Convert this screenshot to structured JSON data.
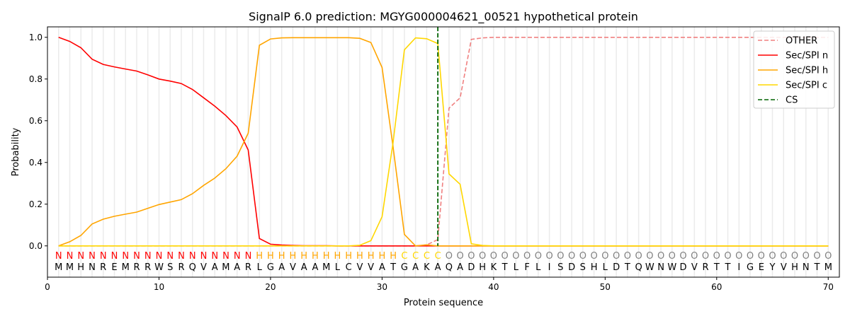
{
  "chart_data": {
    "type": "line",
    "title": "SignalP 6.0 prediction: MGYG000004621_00521 hypothetical protein",
    "xlabel": "Protein sequence",
    "ylabel": "Probability",
    "xlim": [
      0,
      71
    ],
    "ylim": [
      -0.15,
      1.05
    ],
    "xticks": [
      0,
      10,
      20,
      30,
      40,
      50,
      60,
      70
    ],
    "yticks": [
      "0.0",
      "0.2",
      "0.4",
      "0.6",
      "0.8",
      "1.0"
    ],
    "legend_position": "top-right",
    "sequence": "MMHNREMRRWSRQVAMARLGAVAAMLCVVATGAKAQADHKTLFLISDSHLDTQWNWDVRTTIGEYVHNTM",
    "labels": "NNNNNNNNNNNNNNNNNNHHHHHHHHHHHHHCCCCOOOOOOOOOOOOOOOOOOOOOOOOOOOOOOOOOOO",
    "label_colors": {
      "N": "#ff0000",
      "H": "#ffa500",
      "C": "#ffd700",
      "O": "#808080"
    },
    "cs_position": 35,
    "series": [
      {
        "name": "OTHER",
        "color": "#f08080",
        "dash": true,
        "values": [
          0,
          0,
          0,
          0,
          0,
          0,
          0,
          0,
          0,
          0,
          0,
          0,
          0,
          0,
          0,
          0,
          0,
          0,
          0,
          0,
          0,
          0,
          0,
          0,
          0,
          0,
          0,
          0,
          0,
          0,
          0,
          0,
          0,
          0.005,
          0.03,
          0.66,
          0.71,
          0.99,
          0.997,
          1,
          1,
          1,
          1,
          1,
          1,
          1,
          1,
          1,
          1,
          1,
          1,
          1,
          1,
          1,
          1,
          1,
          1,
          1,
          1,
          1,
          1,
          1,
          1,
          1,
          1,
          1,
          1,
          1,
          1,
          1
        ]
      },
      {
        "name": "Sec/SPI n",
        "color": "#ff0000",
        "values": [
          1.0,
          0.98,
          0.95,
          0.895,
          0.87,
          0.858,
          0.848,
          0.838,
          0.82,
          0.8,
          0.79,
          0.778,
          0.75,
          0.71,
          0.67,
          0.625,
          0.57,
          0.46,
          0.035,
          0.008,
          0.004,
          0.002,
          0.001,
          0.001,
          0.001,
          0,
          0,
          0,
          0,
          0,
          0,
          0,
          0,
          0,
          0,
          0,
          0,
          0,
          0,
          0,
          0,
          0,
          0,
          0,
          0,
          0,
          0,
          0,
          0,
          0,
          0,
          0,
          0,
          0,
          0,
          0,
          0,
          0,
          0,
          0,
          0,
          0,
          0,
          0,
          0,
          0,
          0,
          0,
          0,
          0
        ]
      },
      {
        "name": "Sec/SPI h",
        "color": "#ffa500",
        "values": [
          0,
          0.02,
          0.05,
          0.105,
          0.128,
          0.142,
          0.152,
          0.162,
          0.18,
          0.198,
          0.21,
          0.222,
          0.25,
          0.29,
          0.325,
          0.37,
          0.43,
          0.54,
          0.962,
          0.992,
          0.997,
          0.998,
          0.998,
          0.998,
          0.998,
          0.998,
          0.998,
          0.995,
          0.975,
          0.855,
          0.47,
          0.055,
          0.0,
          0.005,
          0,
          0,
          0,
          0,
          0,
          0,
          0,
          0,
          0,
          0,
          0,
          0,
          0,
          0,
          0,
          0,
          0,
          0,
          0,
          0,
          0,
          0,
          0,
          0,
          0,
          0,
          0,
          0,
          0,
          0,
          0,
          0,
          0,
          0,
          0,
          0
        ]
      },
      {
        "name": "Sec/SPI c",
        "color": "#ffd700",
        "values": [
          0,
          0,
          0,
          0,
          0,
          0,
          0,
          0,
          0,
          0,
          0,
          0,
          0,
          0,
          0,
          0,
          0,
          0,
          0,
          0,
          0,
          0,
          0,
          0,
          0,
          0,
          0,
          0.003,
          0.025,
          0.14,
          0.5,
          0.94,
          0.997,
          0.993,
          0.97,
          0.345,
          0.295,
          0.01,
          0.002,
          0,
          0,
          0,
          0,
          0,
          0,
          0,
          0,
          0,
          0,
          0,
          0,
          0,
          0,
          0,
          0,
          0,
          0,
          0,
          0,
          0,
          0,
          0,
          0,
          0,
          0,
          0,
          0,
          0,
          0,
          0
        ]
      },
      {
        "name": "CS",
        "color": "#006400",
        "dash": true,
        "vertical": true
      }
    ]
  }
}
